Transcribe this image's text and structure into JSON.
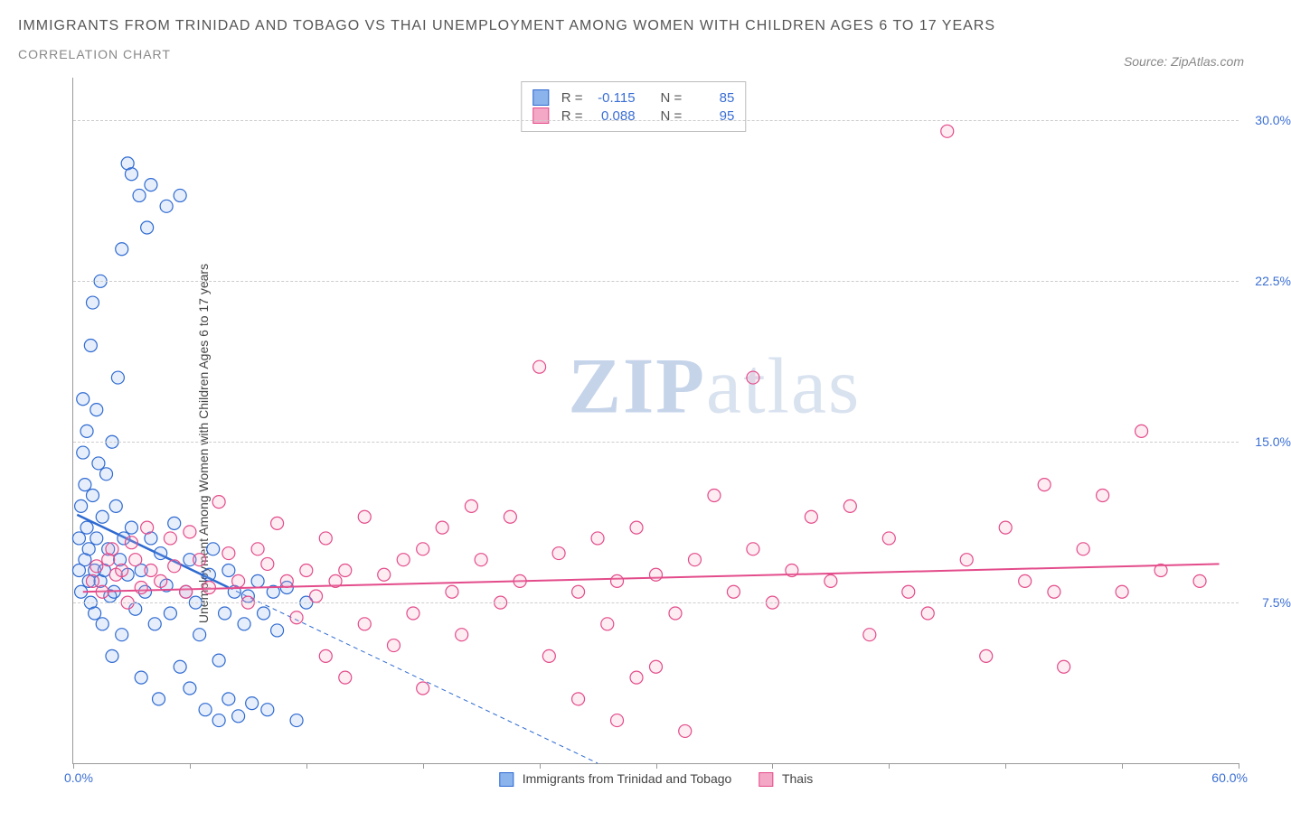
{
  "title": "IMMIGRANTS FROM TRINIDAD AND TOBAGO VS THAI UNEMPLOYMENT AMONG WOMEN WITH CHILDREN AGES 6 TO 17 YEARS",
  "subtitle": "CORRELATION CHART",
  "source_label": "Source: ZipAtlas.com",
  "ylabel": "Unemployment Among Women with Children Ages 6 to 17 years",
  "watermark": {
    "part1": "ZIP",
    "part2": "atlas"
  },
  "chart": {
    "type": "scatter",
    "xlim": [
      0,
      60
    ],
    "ylim": [
      0,
      32
    ],
    "x_tick_positions": [
      0,
      6,
      12,
      18,
      24,
      30,
      36,
      42,
      48,
      54,
      60
    ],
    "x_tick_labels": {
      "min": "0.0%",
      "max": "60.0%"
    },
    "y_gridlines": [
      7.5,
      15.0,
      22.5,
      30.0
    ],
    "y_tick_labels": [
      "7.5%",
      "15.0%",
      "22.5%",
      "30.0%"
    ],
    "background_color": "#ffffff",
    "grid_color": "#cccccc",
    "axis_color": "#999999",
    "label_color_blue": "#3b6fd4",
    "marker_radius": 7,
    "marker_stroke_width": 1.2,
    "marker_fill_opacity": 0.22,
    "series": [
      {
        "name": "Immigrants from Trinidad and Tobago",
        "color_stroke": "#2e6ad1",
        "color_fill": "#8bb3ec",
        "R_label": "R =",
        "R_value": "-0.115",
        "N_label": "N =",
        "N_value": "85",
        "trend_solid": {
          "x1": 0.2,
          "y1": 11.6,
          "x2": 8.0,
          "y2": 8.2,
          "width": 2.5
        },
        "trend_dashed": {
          "x1": 8.0,
          "y1": 8.2,
          "x2": 27.0,
          "y2": 0.0,
          "width": 1,
          "dash": "5,4"
        },
        "points": [
          [
            0.3,
            9.0
          ],
          [
            0.3,
            10.5
          ],
          [
            0.4,
            12.0
          ],
          [
            0.4,
            8.0
          ],
          [
            0.5,
            14.5
          ],
          [
            0.5,
            17.0
          ],
          [
            0.6,
            13.0
          ],
          [
            0.6,
            9.5
          ],
          [
            0.7,
            11.0
          ],
          [
            0.7,
            15.5
          ],
          [
            0.8,
            10.0
          ],
          [
            0.8,
            8.5
          ],
          [
            0.9,
            7.5
          ],
          [
            0.9,
            19.5
          ],
          [
            1.0,
            21.5
          ],
          [
            1.0,
            12.5
          ],
          [
            1.1,
            9.0
          ],
          [
            1.1,
            7.0
          ],
          [
            1.2,
            16.5
          ],
          [
            1.2,
            10.5
          ],
          [
            1.3,
            14.0
          ],
          [
            1.4,
            8.5
          ],
          [
            1.4,
            22.5
          ],
          [
            1.5,
            11.5
          ],
          [
            1.5,
            6.5
          ],
          [
            1.6,
            9.0
          ],
          [
            1.7,
            13.5
          ],
          [
            1.8,
            10.0
          ],
          [
            1.9,
            7.8
          ],
          [
            2.0,
            15.0
          ],
          [
            2.0,
            5.0
          ],
          [
            2.1,
            8.0
          ],
          [
            2.2,
            12.0
          ],
          [
            2.3,
            18.0
          ],
          [
            2.4,
            9.5
          ],
          [
            2.5,
            24.0
          ],
          [
            2.5,
            6.0
          ],
          [
            2.6,
            10.5
          ],
          [
            2.8,
            8.8
          ],
          [
            2.8,
            28.0
          ],
          [
            3.0,
            11.0
          ],
          [
            3.0,
            27.5
          ],
          [
            3.2,
            7.2
          ],
          [
            3.4,
            26.5
          ],
          [
            3.5,
            9.0
          ],
          [
            3.5,
            4.0
          ],
          [
            3.7,
            8.0
          ],
          [
            3.8,
            25.0
          ],
          [
            4.0,
            10.5
          ],
          [
            4.0,
            27.0
          ],
          [
            4.2,
            6.5
          ],
          [
            4.4,
            3.0
          ],
          [
            4.5,
            9.8
          ],
          [
            4.8,
            26.0
          ],
          [
            4.8,
            8.3
          ],
          [
            5.0,
            7.0
          ],
          [
            5.2,
            11.2
          ],
          [
            5.5,
            4.5
          ],
          [
            5.5,
            26.5
          ],
          [
            5.8,
            8.0
          ],
          [
            6.0,
            9.5
          ],
          [
            6.0,
            3.5
          ],
          [
            6.3,
            7.5
          ],
          [
            6.5,
            6.0
          ],
          [
            6.8,
            2.5
          ],
          [
            7.0,
            8.8
          ],
          [
            7.2,
            10.0
          ],
          [
            7.5,
            4.8
          ],
          [
            7.5,
            2.0
          ],
          [
            7.8,
            7.0
          ],
          [
            8.0,
            9.0
          ],
          [
            8.0,
            3.0
          ],
          [
            8.3,
            8.0
          ],
          [
            8.5,
            2.2
          ],
          [
            8.8,
            6.5
          ],
          [
            9.0,
            7.8
          ],
          [
            9.2,
            2.8
          ],
          [
            9.5,
            8.5
          ],
          [
            9.8,
            7.0
          ],
          [
            10.0,
            2.5
          ],
          [
            10.3,
            8.0
          ],
          [
            10.5,
            6.2
          ],
          [
            11.0,
            8.2
          ],
          [
            11.5,
            2.0
          ],
          [
            12.0,
            7.5
          ]
        ]
      },
      {
        "name": "Thais",
        "color_stroke": "#e34b8a",
        "color_fill": "#f4a8c6",
        "R_label": "R =",
        "R_value": "0.088",
        "N_label": "N =",
        "N_value": "95",
        "trend_solid": {
          "x1": 0.5,
          "y1": 8.0,
          "x2": 59.0,
          "y2": 9.3,
          "width": 2
        },
        "points": [
          [
            1.0,
            8.5
          ],
          [
            1.2,
            9.2
          ],
          [
            1.5,
            8.0
          ],
          [
            1.8,
            9.5
          ],
          [
            2.0,
            10.0
          ],
          [
            2.2,
            8.8
          ],
          [
            2.5,
            9.0
          ],
          [
            2.8,
            7.5
          ],
          [
            3.0,
            10.3
          ],
          [
            3.2,
            9.5
          ],
          [
            3.5,
            8.2
          ],
          [
            3.8,
            11.0
          ],
          [
            4.0,
            9.0
          ],
          [
            4.5,
            8.5
          ],
          [
            5.0,
            10.5
          ],
          [
            5.2,
            9.2
          ],
          [
            5.8,
            8.0
          ],
          [
            6.0,
            10.8
          ],
          [
            6.5,
            9.5
          ],
          [
            7.0,
            8.2
          ],
          [
            7.5,
            12.2
          ],
          [
            8.0,
            9.8
          ],
          [
            8.5,
            8.5
          ],
          [
            9.0,
            7.5
          ],
          [
            9.5,
            10.0
          ],
          [
            10.0,
            9.3
          ],
          [
            10.5,
            11.2
          ],
          [
            11.0,
            8.5
          ],
          [
            11.5,
            6.8
          ],
          [
            12.0,
            9.0
          ],
          [
            12.5,
            7.8
          ],
          [
            13.0,
            10.5
          ],
          [
            13.0,
            5.0
          ],
          [
            13.5,
            8.5
          ],
          [
            14.0,
            9.0
          ],
          [
            14.0,
            4.0
          ],
          [
            15.0,
            11.5
          ],
          [
            15.0,
            6.5
          ],
          [
            16.0,
            8.8
          ],
          [
            16.5,
            5.5
          ],
          [
            17.0,
            9.5
          ],
          [
            17.5,
            7.0
          ],
          [
            18.0,
            10.0
          ],
          [
            18.0,
            3.5
          ],
          [
            19.0,
            11.0
          ],
          [
            19.5,
            8.0
          ],
          [
            20.0,
            6.0
          ],
          [
            20.5,
            12.0
          ],
          [
            21.0,
            9.5
          ],
          [
            22.0,
            7.5
          ],
          [
            22.5,
            11.5
          ],
          [
            23.0,
            8.5
          ],
          [
            24.0,
            18.5
          ],
          [
            24.5,
            5.0
          ],
          [
            25.0,
            9.8
          ],
          [
            26.0,
            8.0
          ],
          [
            26.0,
            3.0
          ],
          [
            27.0,
            10.5
          ],
          [
            27.5,
            6.5
          ],
          [
            28.0,
            8.5
          ],
          [
            28.0,
            2.0
          ],
          [
            29.0,
            11.0
          ],
          [
            29.0,
            4.0
          ],
          [
            30.0,
            8.8
          ],
          [
            30.0,
            4.5
          ],
          [
            31.0,
            7.0
          ],
          [
            31.5,
            1.5
          ],
          [
            32.0,
            9.5
          ],
          [
            33.0,
            12.5
          ],
          [
            34.0,
            8.0
          ],
          [
            35.0,
            10.0
          ],
          [
            35.0,
            18.0
          ],
          [
            36.0,
            7.5
          ],
          [
            37.0,
            9.0
          ],
          [
            38.0,
            11.5
          ],
          [
            39.0,
            8.5
          ],
          [
            40.0,
            12.0
          ],
          [
            41.0,
            6.0
          ],
          [
            42.0,
            10.5
          ],
          [
            43.0,
            8.0
          ],
          [
            44.0,
            7.0
          ],
          [
            45.0,
            29.5
          ],
          [
            46.0,
            9.5
          ],
          [
            47.0,
            5.0
          ],
          [
            48.0,
            11.0
          ],
          [
            49.0,
            8.5
          ],
          [
            50.0,
            13.0
          ],
          [
            50.5,
            8.0
          ],
          [
            51.0,
            4.5
          ],
          [
            52.0,
            10.0
          ],
          [
            53.0,
            12.5
          ],
          [
            54.0,
            8.0
          ],
          [
            55.0,
            15.5
          ],
          [
            56.0,
            9.0
          ],
          [
            58.0,
            8.5
          ]
        ]
      }
    ],
    "bottom_legend": [
      {
        "swatch_fill": "#8bb3ec",
        "swatch_stroke": "#2e6ad1",
        "label": "Immigrants from Trinidad and Tobago"
      },
      {
        "swatch_fill": "#f4a8c6",
        "swatch_stroke": "#e34b8a",
        "label": "Thais"
      }
    ]
  }
}
